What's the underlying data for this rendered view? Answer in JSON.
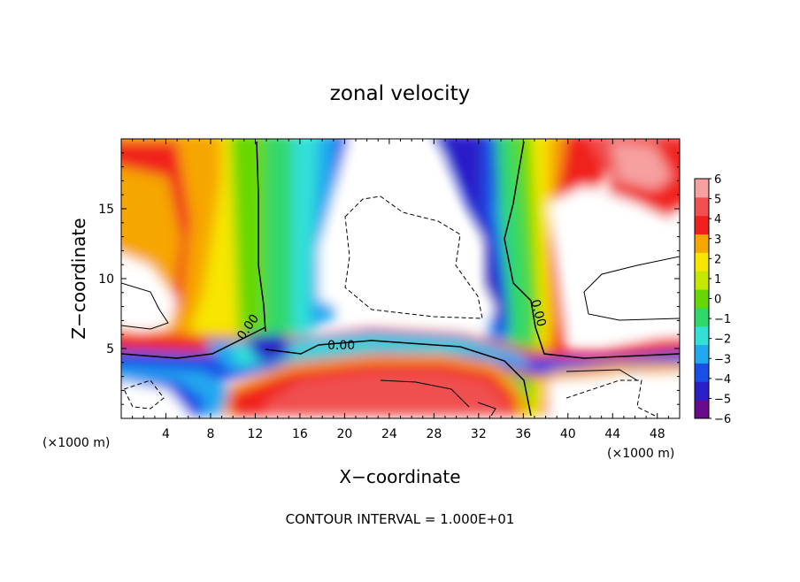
{
  "chart_data": {
    "type": "heatmap",
    "title": "zonal velocity",
    "xlabel": "X−coordinate",
    "ylabel": "Z−coordinate",
    "x_unit_left": "(×1000 m)",
    "x_unit_right": "(×1000 m)",
    "xlim": [
      0,
      50
    ],
    "ylim": [
      0,
      20
    ],
    "x_ticks": [
      4,
      8,
      12,
      16,
      20,
      24,
      28,
      32,
      36,
      40,
      44,
      48
    ],
    "y_ticks": [
      5,
      10,
      15
    ],
    "colorbar": {
      "min": -6,
      "max": 6,
      "tick_values": [
        6,
        5,
        4,
        3,
        2,
        1,
        0,
        -1,
        -2,
        -3,
        -4,
        -5,
        -6
      ],
      "tick_labels": [
        "6",
        "5",
        "4",
        "3",
        "2",
        "1",
        "0",
        "−1",
        "−2",
        "−3",
        "−4",
        "−5",
        "−6"
      ],
      "colors": [
        "#6a0a8c",
        "#2b1fc8",
        "#1a4fe6",
        "#22a8f0",
        "#33e0d6",
        "#30d86a",
        "#66d800",
        "#c4e800",
        "#f6e600",
        "#f6a600",
        "#f0201e",
        "#f05050",
        "#f6a0a0"
      ]
    },
    "contour_labels": [
      "0.00",
      "0.00",
      "0.00"
    ],
    "footer": "CONTOUR INTERVAL = 1.000E+01"
  }
}
